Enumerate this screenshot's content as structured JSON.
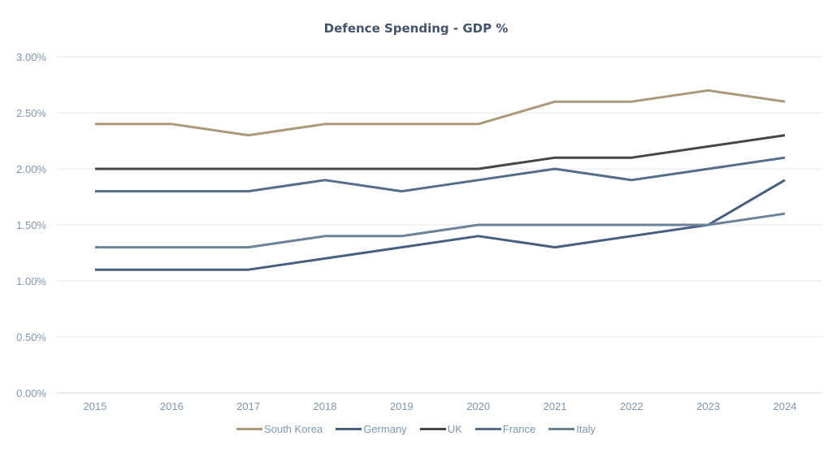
{
  "chart_data": {
    "type": "line",
    "title": "Defence Spending - GDP %",
    "xlabel": "",
    "ylabel": "",
    "x": [
      "2015",
      "2016",
      "2017",
      "2018",
      "2019",
      "2020",
      "2021",
      "2022",
      "2023",
      "2024"
    ],
    "ylim": [
      0,
      3.0
    ],
    "yticks": [
      "0.00%",
      "0.50%",
      "1.00%",
      "1.50%",
      "2.00%",
      "2.50%",
      "3.00%"
    ],
    "ytick_values": [
      0,
      0.5,
      1.0,
      1.5,
      2.0,
      2.5,
      3.0
    ],
    "grid": true,
    "legend_position": "bottom",
    "series": [
      {
        "name": "South Korea",
        "color": "#ab9a7a",
        "values": [
          2.4,
          2.4,
          2.3,
          2.4,
          2.4,
          2.4,
          2.6,
          2.6,
          2.7,
          2.6
        ]
      },
      {
        "name": "Germany",
        "color": "#475f7f",
        "values": [
          1.1,
          1.1,
          1.1,
          1.2,
          1.3,
          1.4,
          1.3,
          1.4,
          1.5,
          1.9
        ]
      },
      {
        "name": "UK",
        "color": "#464646",
        "values": [
          2.0,
          2.0,
          2.0,
          2.0,
          2.0,
          2.0,
          2.1,
          2.1,
          2.2,
          2.3
        ]
      },
      {
        "name": "France",
        "color": "#566d89",
        "values": [
          1.8,
          1.8,
          1.8,
          1.9,
          1.8,
          1.9,
          2.0,
          1.9,
          2.0,
          2.1
        ]
      },
      {
        "name": "Italy",
        "color": "#6d8299",
        "values": [
          1.3,
          1.3,
          1.3,
          1.4,
          1.4,
          1.5,
          1.5,
          1.5,
          1.5,
          1.6
        ]
      }
    ]
  }
}
